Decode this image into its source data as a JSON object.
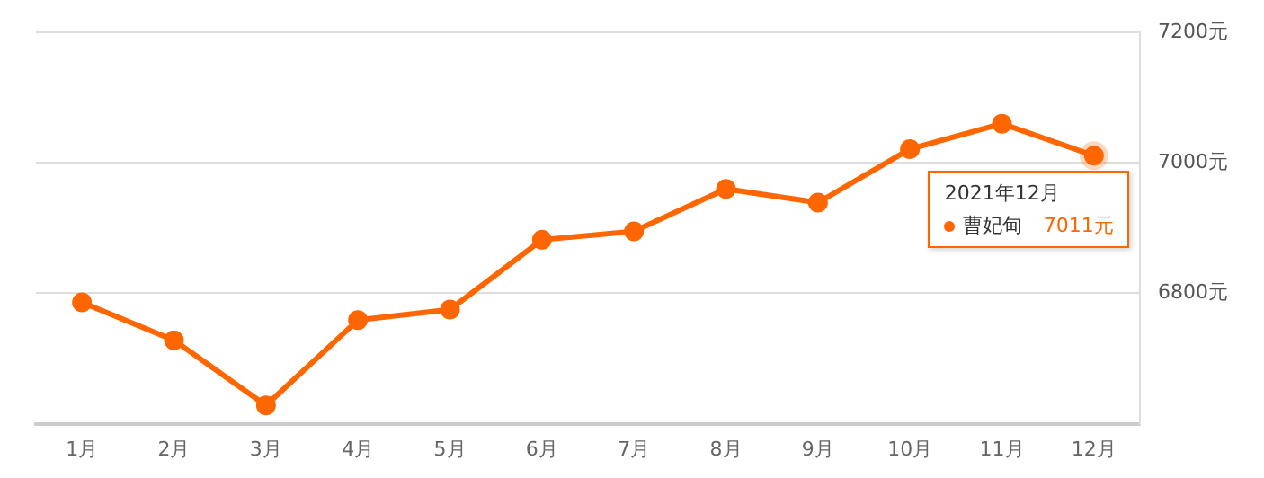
{
  "chart_data": {
    "type": "line",
    "categories": [
      "1月",
      "2月",
      "3月",
      "4月",
      "5月",
      "6月",
      "7月",
      "8月",
      "9月",
      "10月",
      "11月",
      "12月"
    ],
    "series": [
      {
        "name": "曹妃甸",
        "color": "#ff6600",
        "values": [
          6786,
          6728,
          6628,
          6759,
          6775,
          6882,
          6895,
          6960,
          6939,
          7021,
          7060,
          7011
        ],
        "value_labels": [
          null,
          null,
          null,
          null,
          null,
          null,
          null,
          null,
          null,
          null,
          null,
          "7011元"
        ]
      }
    ],
    "ylim": [
      6600,
      7200
    ],
    "yticks": [
      {
        "value": 6600,
        "label": null
      },
      {
        "value": 6800,
        "label": "6800元"
      },
      {
        "value": 7000,
        "label": "7000元"
      },
      {
        "value": 7200,
        "label": "7200元"
      }
    ],
    "annotations": [
      {
        "text": "2021年12月",
        "x": "12月",
        "y": 7011
      }
    ],
    "grid": "y",
    "legend": "right",
    "marker": "circle",
    "line_style": "solid"
  }
}
